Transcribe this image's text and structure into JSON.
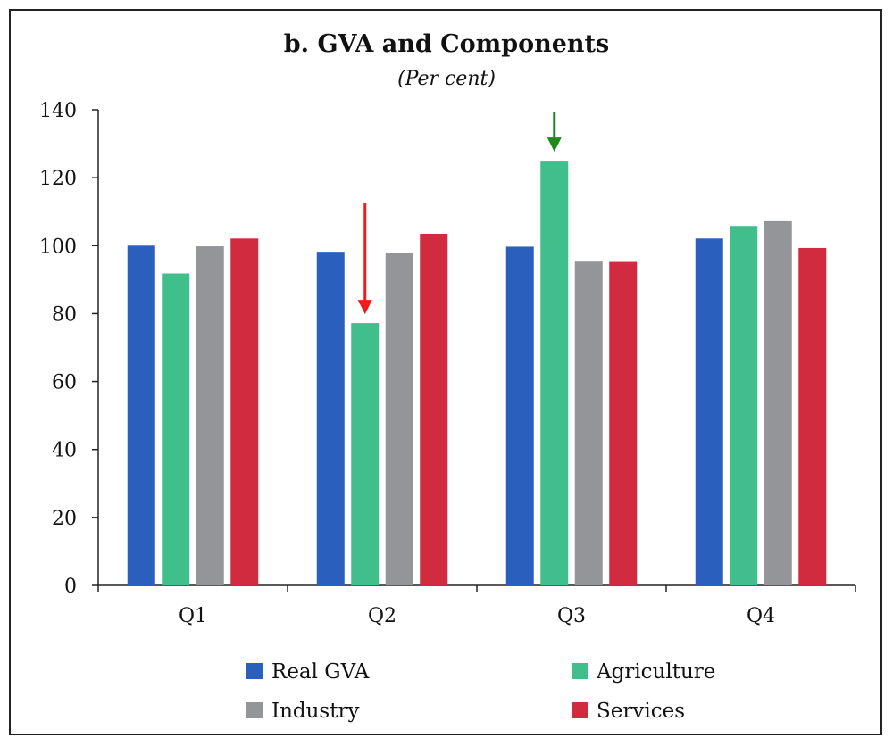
{
  "chart_data": {
    "type": "bar",
    "title": "b. GVA and Components",
    "subtitle": "(Per cent)",
    "categories": [
      "Q1",
      "Q2",
      "Q3",
      "Q4"
    ],
    "series": [
      {
        "name": "Real GVA",
        "color": "#2A5FBE",
        "values": [
          100.0,
          98.2,
          99.7,
          102.1
        ]
      },
      {
        "name": "Agriculture",
        "color": "#40BE8C",
        "values": [
          91.8,
          77.2,
          125.0,
          105.8
        ]
      },
      {
        "name": "Industry",
        "color": "#939598",
        "values": [
          99.8,
          97.9,
          95.3,
          107.2
        ]
      },
      {
        "name": "Services",
        "color": "#D12B40",
        "values": [
          102.1,
          103.5,
          95.2,
          99.3
        ]
      }
    ],
    "ylim": [
      0,
      140
    ],
    "yticks": [
      0,
      20,
      40,
      60,
      80,
      100,
      120,
      140
    ],
    "xlabel": "",
    "ylabel": "",
    "grid": false,
    "legend_position": "bottom",
    "annotations": [
      {
        "type": "arrow-down",
        "category": "Q2",
        "series": "Agriculture",
        "color": "#EE1C1C"
      },
      {
        "type": "arrow-down",
        "category": "Q3",
        "series": "Agriculture",
        "color": "#1E8A1E"
      }
    ]
  }
}
